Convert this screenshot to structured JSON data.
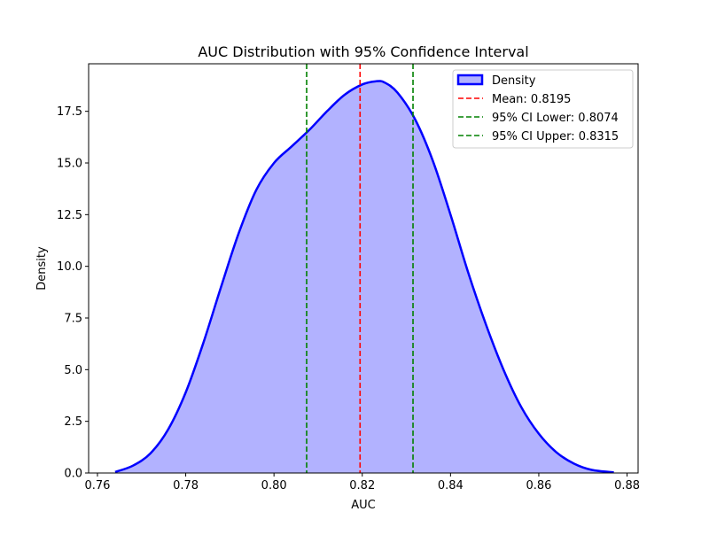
{
  "chart_data": {
    "type": "area",
    "title": "AUC Distribution with 95% Confidence Interval",
    "xlabel": "AUC",
    "ylabel": "Density",
    "xlim": [
      0.758,
      0.8825
    ],
    "ylim": [
      0,
      19.8
    ],
    "xticks": [
      0.76,
      0.78,
      0.8,
      0.82,
      0.84,
      0.86,
      0.88
    ],
    "xtick_labels": [
      "0.76",
      "0.78",
      "0.80",
      "0.82",
      "0.84",
      "0.86",
      "0.88"
    ],
    "yticks": [
      0.0,
      2.5,
      5.0,
      7.5,
      10.0,
      12.5,
      15.0,
      17.5
    ],
    "ytick_labels": [
      "0.0",
      "2.5",
      "5.0",
      "7.5",
      "10.0",
      "12.5",
      "15.0",
      "17.5"
    ],
    "grid": false,
    "legend_position": "top-right",
    "series": [
      {
        "name": "Density",
        "kind": "kde-area",
        "line_color": "#0000ff",
        "fill_color": "#b2b2ff",
        "x": [
          0.764,
          0.768,
          0.772,
          0.776,
          0.78,
          0.784,
          0.788,
          0.792,
          0.796,
          0.8,
          0.804,
          0.808,
          0.812,
          0.816,
          0.82,
          0.823,
          0.825,
          0.828,
          0.832,
          0.836,
          0.84,
          0.844,
          0.848,
          0.852,
          0.856,
          0.86,
          0.864,
          0.868,
          0.872,
          0.877
        ],
        "y": [
          0.05,
          0.35,
          0.95,
          2.1,
          3.9,
          6.3,
          9.0,
          11.6,
          13.7,
          15.0,
          15.8,
          16.6,
          17.5,
          18.3,
          18.8,
          18.95,
          18.9,
          18.4,
          17.1,
          15.1,
          12.5,
          9.7,
          7.2,
          5.0,
          3.2,
          1.9,
          1.0,
          0.45,
          0.15,
          0.03
        ]
      }
    ],
    "vlines": [
      {
        "name": "Mean: 0.8195",
        "x": 0.8195,
        "color": "#ff0000",
        "style": "dashed"
      },
      {
        "name": "95% CI Lower: 0.8074",
        "x": 0.8074,
        "color": "#008000",
        "style": "dashed"
      },
      {
        "name": "95% CI Upper: 0.8315",
        "x": 0.8315,
        "color": "#008000",
        "style": "dashed"
      }
    ]
  }
}
